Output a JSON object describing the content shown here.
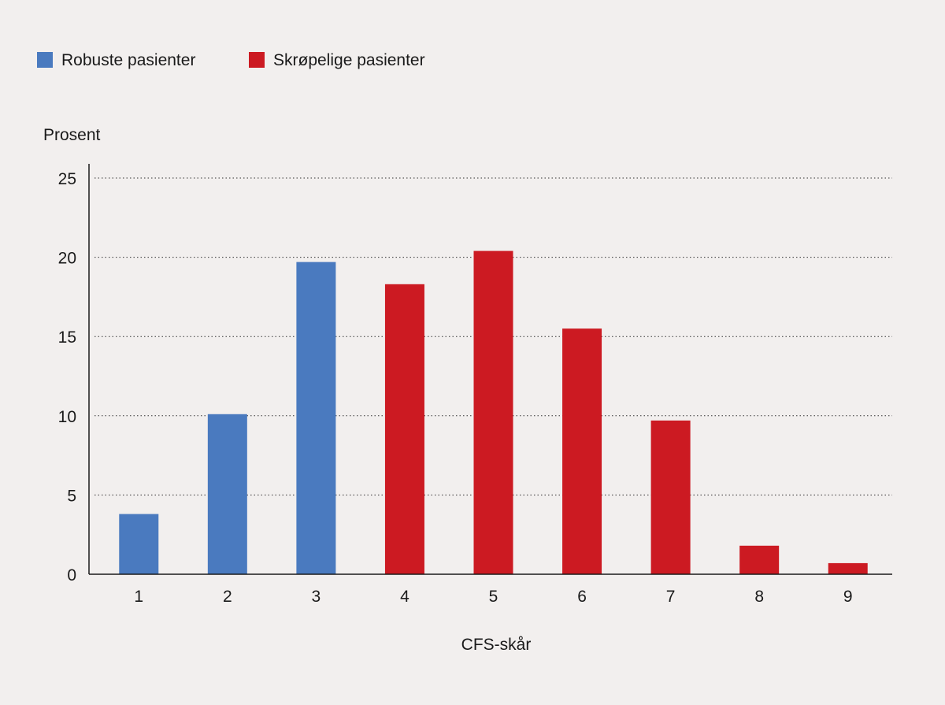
{
  "chart_data": {
    "type": "bar",
    "categories": [
      "1",
      "2",
      "3",
      "4",
      "5",
      "6",
      "7",
      "8",
      "9"
    ],
    "values": [
      3.8,
      10.1,
      19.7,
      18.3,
      20.4,
      15.5,
      9.7,
      1.8,
      0.7
    ],
    "groups": [
      "robust",
      "robust",
      "robust",
      "frail",
      "frail",
      "frail",
      "frail",
      "frail",
      "frail"
    ],
    "series": [
      {
        "key": "robust",
        "name": "Robuste pasienter",
        "color": "#4a7abf"
      },
      {
        "key": "frail",
        "name": "Skrøpelige pasienter",
        "color": "#cc1a22"
      }
    ],
    "ylabel": "Prosent",
    "xlabel": "CFS-skår",
    "ylim": [
      0,
      25
    ],
    "yticks": [
      0,
      5,
      10,
      15,
      20,
      25
    ],
    "grid": true,
    "legend_position": "top-left"
  }
}
